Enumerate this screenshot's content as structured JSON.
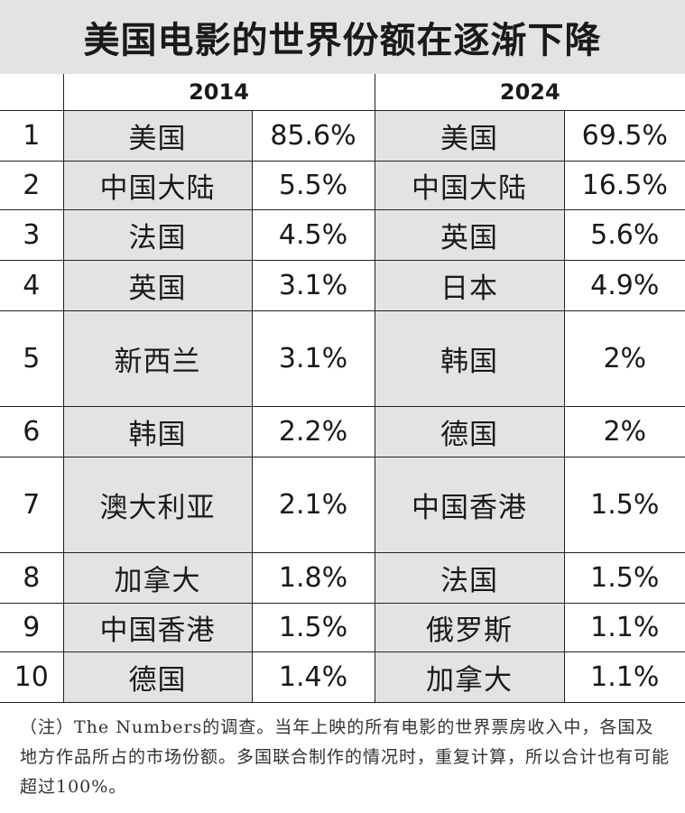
{
  "title": "美国电影的世界份额在逐渐下降",
  "headers": {
    "col_a": "2014",
    "col_b": "2024"
  },
  "rows": [
    {
      "rank": "1",
      "a_country": "美国",
      "a_share": "85.6%",
      "b_country": "美国",
      "b_share": "69.5%"
    },
    {
      "rank": "2",
      "a_country": "中国大陆",
      "a_share": "5.5%",
      "b_country": "中国大陆",
      "b_share": "16.5%"
    },
    {
      "rank": "3",
      "a_country": "法国",
      "a_share": "4.5%",
      "b_country": "英国",
      "b_share": "5.6%"
    },
    {
      "rank": "4",
      "a_country": "英国",
      "a_share": "3.1%",
      "b_country": "日本",
      "b_share": "4.9%"
    },
    {
      "rank": "5",
      "a_country": "新西兰",
      "a_share": "3.1%",
      "b_country": "韩国",
      "b_share": "2%"
    },
    {
      "rank": "6",
      "a_country": "韩国",
      "a_share": "2.2%",
      "b_country": "德国",
      "b_share": "2%"
    },
    {
      "rank": "7",
      "a_country": "澳大利亚",
      "a_share": "2.1%",
      "b_country": "中国香港",
      "b_share": "1.5%"
    },
    {
      "rank": "8",
      "a_country": "加拿大",
      "a_share": "1.8%",
      "b_country": "法国",
      "b_share": "1.5%"
    },
    {
      "rank": "9",
      "a_country": "中国香港",
      "a_share": "1.5%",
      "b_country": "俄罗斯",
      "b_share": "1.1%"
    },
    {
      "rank": "10",
      "a_country": "德国",
      "a_share": "1.4%",
      "b_country": "加拿大",
      "b_share": "1.1%"
    }
  ],
  "note": "（注）The Numbers的调查。当年上映的所有电影的世界票房收入中，各国及地方作品所占的市场份额。多国联合制作的情况时，重复计算，所以合计也有可能超过100%。",
  "colors": {
    "shade": "#e3e3e3",
    "line": "#222222",
    "text": "#1a1a1a"
  }
}
